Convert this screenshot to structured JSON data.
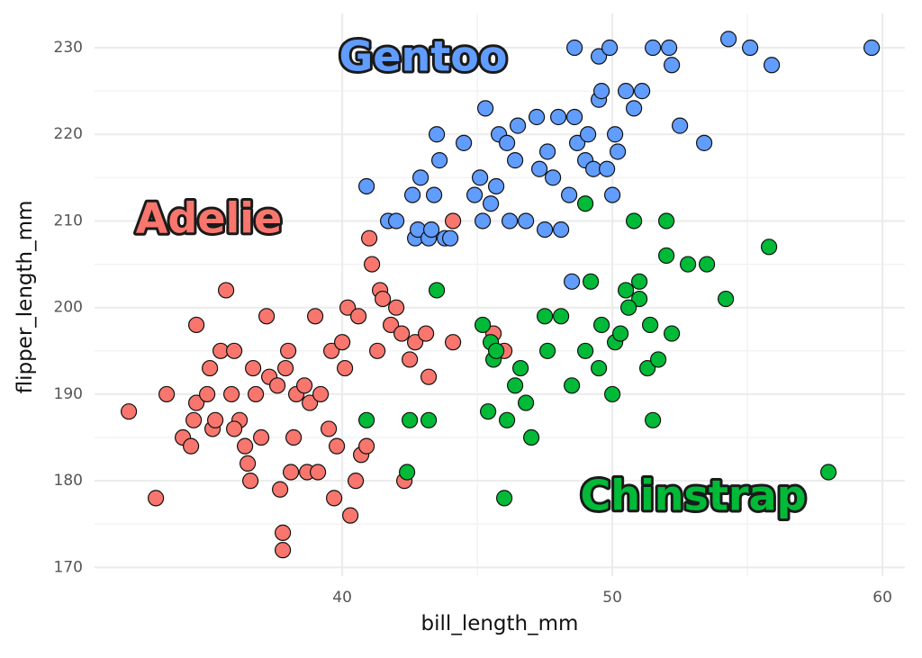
{
  "chart_data": {
    "type": "scatter",
    "x_label": "bill_length_mm",
    "y_label": "flipper_length_mm",
    "xlim": [
      30.83,
      60.83
    ],
    "ylim": [
      169,
      233.95
    ],
    "xticks": [
      40,
      50,
      60
    ],
    "yticks": [
      170,
      180,
      190,
      200,
      210,
      220,
      230
    ],
    "grid": true,
    "series": [
      {
        "name": "Adelie",
        "color": "#F8766D",
        "x": [
          32.1,
          33.1,
          33.5,
          34.1,
          34.4,
          34.5,
          34.6,
          34.6,
          35,
          35.1,
          35.2,
          35.3,
          35.5,
          35.7,
          35.9,
          36,
          36.2,
          36.4,
          36.5,
          36.6,
          36.7,
          36.8,
          37,
          37.2,
          37.3,
          37.6,
          37.7,
          37.8,
          37.8,
          37.9,
          38,
          38.1,
          38.2,
          38.3,
          38.6,
          38.7,
          38.8,
          39,
          39.2,
          39.5,
          39.6,
          39.7,
          39.8,
          40,
          40.1,
          40.2,
          40.3,
          40.5,
          40.6,
          40.7,
          40.9,
          41,
          41.1,
          41.4,
          41.5,
          41.8,
          42,
          42.2,
          42.3,
          42.5,
          42.7,
          43.1,
          43.2,
          44.1,
          44.1,
          45.6,
          46,
          41.3,
          39.1,
          36
        ],
        "values": [
          188,
          178,
          190,
          185,
          184,
          187,
          198,
          189,
          190,
          193,
          186,
          187,
          195,
          202,
          190,
          195,
          187,
          184,
          182,
          180,
          193,
          190,
          185,
          199,
          192,
          191,
          179,
          174,
          172,
          193,
          195,
          181,
          185,
          190,
          191,
          181,
          189,
          199,
          190,
          186,
          195,
          178,
          184,
          196,
          193,
          200,
          176,
          180,
          199,
          183,
          184,
          208,
          205,
          202,
          201,
          198,
          200,
          197,
          180,
          194,
          196,
          197,
          192,
          196,
          210,
          197,
          195,
          195,
          181,
          186
        ]
      },
      {
        "name": "Gentoo",
        "color": "#619CFF",
        "x": [
          40.9,
          41.7,
          42,
          42.6,
          42.7,
          42.8,
          42.9,
          43.2,
          43.3,
          43.4,
          43.5,
          43.6,
          43.8,
          44,
          44.5,
          44.9,
          45.1,
          45.2,
          45.3,
          45.5,
          45.7,
          45.8,
          46.1,
          46.2,
          46.4,
          46.5,
          46.8,
          47.2,
          47.3,
          47.5,
          47.6,
          47.8,
          48,
          48.1,
          48.4,
          48.5,
          48.6,
          48.7,
          49,
          49.1,
          49.3,
          49.5,
          49.6,
          49.8,
          50,
          50.1,
          50.2,
          50.5,
          50.8,
          51.1,
          51.5,
          52.1,
          52.2,
          52.5,
          53.4,
          54.3,
          55.1,
          55.9,
          59.6,
          48.6,
          49.5,
          49.9
        ],
        "values": [
          214,
          210,
          210,
          213,
          208,
          209,
          215,
          208,
          209,
          213,
          220,
          217,
          208,
          208,
          219,
          213,
          215,
          210,
          223,
          212,
          214,
          220,
          219,
          210,
          217,
          221,
          210,
          222,
          216,
          209,
          218,
          215,
          222,
          209,
          213,
          203,
          222,
          219,
          217,
          220,
          216,
          224,
          225,
          216,
          213,
          220,
          218,
          225,
          223,
          225,
          230,
          230,
          228,
          221,
          219,
          231,
          230,
          228,
          230,
          230,
          229,
          230
        ]
      },
      {
        "name": "Chinstrap",
        "color": "#00BA38",
        "x": [
          40.9,
          42.4,
          42.5,
          43.2,
          43.5,
          45.2,
          45.4,
          45.5,
          45.6,
          45.7,
          46,
          46.1,
          46.4,
          46.6,
          46.8,
          47,
          47.5,
          47.6,
          48.1,
          48.5,
          49,
          49,
          49.2,
          49.5,
          49.6,
          50,
          50.1,
          50.3,
          50.5,
          50.8,
          51,
          51.3,
          51.4,
          51.5,
          51.7,
          52,
          52,
          52.2,
          52.8,
          53.5,
          54.2,
          55.8,
          58,
          51,
          50.6
        ],
        "values": [
          187,
          181,
          187,
          187,
          202,
          198,
          188,
          196,
          194,
          195,
          178,
          187,
          191,
          193,
          189,
          185,
          199,
          195,
          199,
          191,
          212,
          195,
          203,
          193,
          198,
          190,
          196,
          197,
          202,
          210,
          203,
          193,
          198,
          187,
          194,
          210,
          206,
          197,
          205,
          205,
          201,
          207,
          181,
          201,
          200
        ]
      }
    ]
  }
}
